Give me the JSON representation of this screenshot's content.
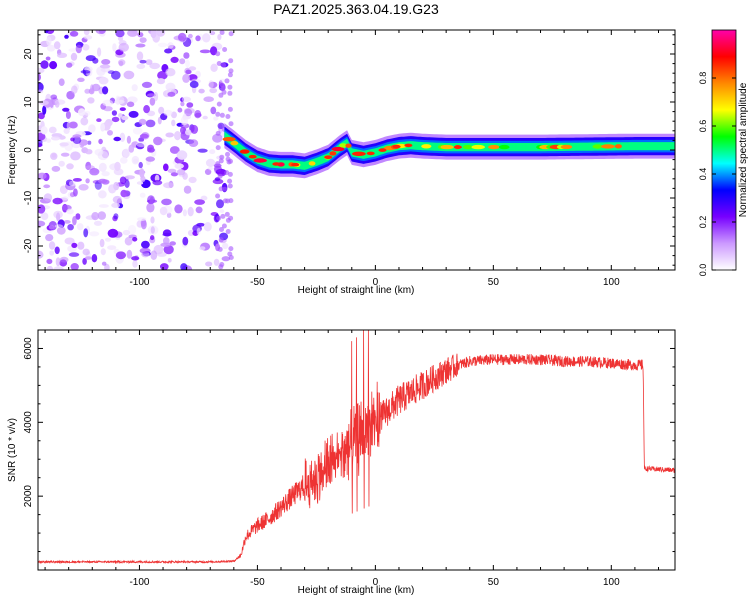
{
  "title": "PAZ1.2025.363.04.19.G23",
  "chart_data": [
    {
      "type": "heatmap",
      "name": "spectrogram",
      "xlabel": "Height of straight line (km)",
      "ylabel": "Frequency (Hz)",
      "xlim": [
        -143,
        127
      ],
      "ylim": [
        -25,
        25
      ],
      "xticks": [
        -100,
        -50,
        0,
        50,
        100
      ],
      "yticks": [
        -20,
        -10,
        0,
        10,
        20
      ],
      "colorbar": {
        "label": "Normalized spectral amplitude",
        "range": [
          0,
          1
        ],
        "ticks": [
          "0.0",
          "0.2",
          "0.4",
          "0.6",
          "0.8"
        ],
        "stops": [
          "#ffffff",
          "#cc99ff",
          "#7700ff",
          "#0000ff",
          "#00ffff",
          "#00ff00",
          "#ffff00",
          "#ff8800",
          "#ff0000",
          "#ff00aa"
        ]
      },
      "noise_region": {
        "x_from": -143,
        "x_to": -63,
        "freq_from": -25,
        "freq_to": 25
      },
      "ridge_center_hz": {
        "x": [
          -64,
          -60,
          -55,
          -50,
          -45,
          -40,
          -35,
          -30,
          -25,
          -20,
          -15,
          -12,
          -10,
          -5,
          0,
          5,
          10,
          15,
          20,
          30,
          50,
          70,
          90,
          110,
          127
        ],
        "y": [
          3,
          1.5,
          -0.5,
          -2,
          -2.8,
          -3,
          -3,
          -3.3,
          -2.5,
          -1.5,
          0.5,
          1.5,
          -0.5,
          -1,
          -0.5,
          0.3,
          0.8,
          1,
          0.8,
          0.6,
          0.6,
          0.6,
          0.7,
          0.8,
          0.8
        ]
      }
    },
    {
      "type": "line",
      "name": "snr",
      "xlabel": "Height of straight line (km)",
      "ylabel": "SNR (10 * v/v)",
      "xlim": [
        -143,
        127
      ],
      "ylim": [
        0,
        6500
      ],
      "xticks": [
        -100,
        -50,
        0,
        50,
        100
      ],
      "yticks": [
        2000,
        4000,
        6000
      ],
      "color": "#ee3333",
      "profile": {
        "x": [
          -143,
          -70,
          -60,
          -57,
          -55,
          -50,
          -45,
          -40,
          -35,
          -30,
          -25,
          -20,
          -15,
          -10,
          -5,
          0,
          5,
          10,
          15,
          20,
          25,
          30,
          35,
          40,
          50,
          60,
          70,
          80,
          90,
          100,
          110,
          113.5,
          114,
          127
        ],
        "y": [
          220,
          220,
          240,
          400,
          900,
          1200,
          1400,
          1700,
          2000,
          2300,
          2500,
          2800,
          3100,
          3400,
          3700,
          4000,
          4300,
          4600,
          4800,
          5000,
          5200,
          5400,
          5550,
          5650,
          5700,
          5700,
          5700,
          5650,
          5650,
          5600,
          5550,
          5550,
          2750,
          2700
        ]
      },
      "spikes": [
        {
          "x": -10,
          "y": 6200
        },
        {
          "x": -8,
          "y": 6300
        },
        {
          "x": -5,
          "y": 6500
        },
        {
          "x": -3,
          "y": 6500
        }
      ]
    }
  ]
}
